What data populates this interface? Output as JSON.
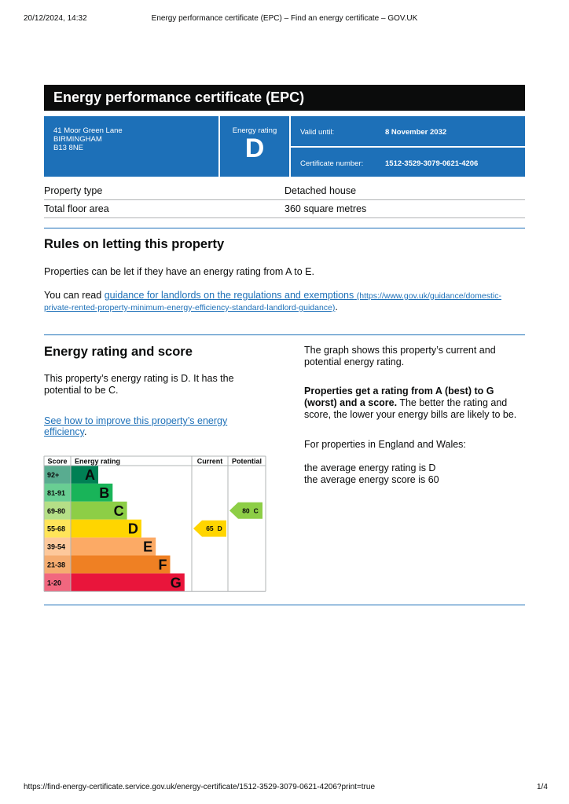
{
  "browser_header": {
    "datetime": "20/12/2024, 14:32",
    "title": "Energy performance certificate (EPC) – Find an energy certificate – GOV.UK"
  },
  "header": {
    "title": "Energy performance certificate (EPC)",
    "address": [
      "41 Moor Green Lane",
      "BIRMINGHAM",
      "B13 8NE"
    ],
    "rating_label": "Energy rating",
    "rating": "D",
    "valid_label": "Valid until:",
    "valid_value": "8 November 2032",
    "cert_label": "Certificate number:",
    "cert_value": "1512-3529-3079-0621-4206"
  },
  "property": {
    "rows": [
      [
        "Property type",
        "Detached house"
      ],
      [
        "Total floor area",
        "360 square metres"
      ]
    ]
  },
  "letting": {
    "heading": "Rules on letting this property",
    "para1": "Properties can be let if they have an energy rating from A to E.",
    "para2_prefix": "You can read ",
    "link_text": "guidance for landlords on the regulations and exemptions",
    "link_url": "(https://www.gov.uk/guidance/domestic-private-rented-property-minimum-energy-efficiency-standard-landlord-guidance)",
    "para2_suffix": "."
  },
  "rating_section": {
    "heading": "Energy rating and score",
    "para": "This property’s energy rating is D. It has the potential to be C.",
    "link_text": "See how to improve this property’s energy efficiency",
    "link_suffix": ".",
    "chart": {
      "headers": [
        "Score",
        "Energy rating",
        "Current",
        "Potential"
      ],
      "bands": [
        {
          "score": "92+",
          "letter": "A",
          "color": "#008054"
        },
        {
          "score": "81-91",
          "letter": "B",
          "color": "#19b459"
        },
        {
          "score": "69-80",
          "letter": "C",
          "color": "#8dce46"
        },
        {
          "score": "55-68",
          "letter": "D",
          "color": "#ffd500"
        },
        {
          "score": "39-54",
          "letter": "E",
          "color": "#fcaa65"
        },
        {
          "score": "21-38",
          "letter": "F",
          "color": "#ef8023"
        },
        {
          "score": "1-20",
          "letter": "G",
          "color": "#e9153b"
        }
      ],
      "current": {
        "score": 65,
        "letter": "D"
      },
      "potential": {
        "score": 80,
        "letter": "C"
      }
    },
    "right_para1": "The graph shows this property’s current and potential energy rating.",
    "right_para2_bold": "Properties get a rating from A (best) to G (worst) and a score.",
    "right_para2_rest": " The better the rating and score, the lower your energy bills are likely to be.",
    "right_para3": "For properties in England and Wales:",
    "right_para4": [
      "the average energy rating is D",
      "the average energy score is 60"
    ]
  },
  "footer": {
    "url": "https://find-energy-certificate.service.gov.uk/energy-certificate/1512-3529-3079-0621-4206?print=true",
    "page": "1/4"
  }
}
